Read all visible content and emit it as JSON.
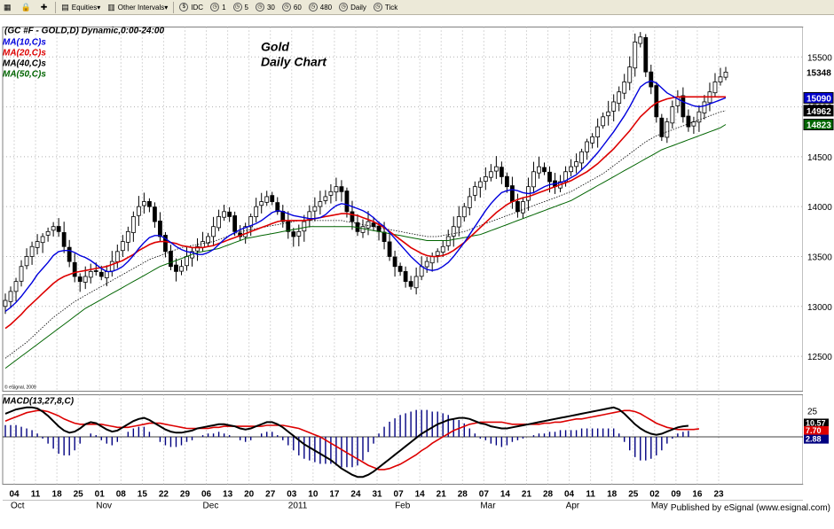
{
  "toolbar": {
    "items": [
      {
        "label": "",
        "icon": "grid-icon"
      },
      {
        "label": "",
        "icon": "lock-icon"
      },
      {
        "label": "",
        "icon": "plus-icon"
      },
      {
        "label": "Equities",
        "icon": "equities-icon",
        "dropdown": true
      },
      {
        "label": "Other Intervals",
        "icon": "intervals-icon",
        "dropdown": true
      },
      {
        "label": "IDC",
        "icon": "idc-icon"
      },
      {
        "label": "1",
        "icon": "interval-icon"
      },
      {
        "label": "5",
        "icon": "interval-icon"
      },
      {
        "label": "30",
        "icon": "interval-icon"
      },
      {
        "label": "60",
        "icon": "interval-icon"
      },
      {
        "label": "480",
        "icon": "interval-icon"
      },
      {
        "label": "Daily",
        "icon": "interval-icon"
      },
      {
        "label": "Tick",
        "icon": "interval-icon"
      }
    ]
  },
  "chart_header": {
    "symbol_line": "(GC #F - GOLD,D) Dynamic,0:00-24:00",
    "ma_labels": [
      {
        "text": "MA(10,C)s",
        "color": "#0000dd"
      },
      {
        "text": "MA(20,C)s",
        "color": "#dd0000"
      },
      {
        "text": "MA(40,C)s",
        "color": "#000000"
      },
      {
        "text": "MA(50,C)s",
        "color": "#006400"
      }
    ],
    "title_line1": "Gold",
    "title_line2": "Daily Chart",
    "copyright": "© eSignal, 2009"
  },
  "macd_label": "MACD(13,27,8,C)",
  "footer_text": "Published by eSignal (www.esignal.com)",
  "chart_data": {
    "type": "candlestick",
    "price_axis": {
      "ticks": [
        12500,
        13000,
        13500,
        14000,
        14500,
        15000,
        15500
      ],
      "range": [
        12150,
        15800
      ]
    },
    "price_badges": [
      {
        "value": "15348",
        "bg": "#ffffff",
        "fg": "#000000"
      },
      {
        "value": "15090",
        "bg": "#0000cc",
        "fg": "#ffffff"
      },
      {
        "value": "14962",
        "bg": "#000000",
        "fg": "#ffffff"
      },
      {
        "value": "14823",
        "bg": "#006400",
        "fg": "#ffffff"
      }
    ],
    "macd_axis": {
      "ticks": [
        25
      ],
      "range": [
        -45,
        40
      ]
    },
    "macd_badges": [
      {
        "value": "10.57",
        "bg": "#000000",
        "fg": "#ffffff"
      },
      {
        "value": "7.70",
        "bg": "#dd0000",
        "fg": "#ffffff"
      },
      {
        "value": "2.88",
        "bg": "#000080",
        "fg": "#ffffff"
      }
    ],
    "date_labels": [
      "04",
      "11",
      "18",
      "25",
      "01",
      "08",
      "15",
      "22",
      "29",
      "06",
      "13",
      "20",
      "27",
      "03",
      "10",
      "17",
      "24",
      "31",
      "07",
      "14",
      "21",
      "28",
      "07",
      "14",
      "21",
      "28",
      "04",
      "11",
      "18",
      "25",
      "02",
      "09",
      "16",
      "23"
    ],
    "month_labels": [
      "Oct",
      "Nov",
      "Dec",
      "2011",
      "Feb",
      "Mar",
      "Apr",
      "May"
    ],
    "closes": [
      13060,
      13150,
      13250,
      13400,
      13500,
      13600,
      13650,
      13700,
      13750,
      13800,
      13750,
      13600,
      13450,
      13300,
      13250,
      13300,
      13350,
      13350,
      13300,
      13350,
      13450,
      13550,
      13650,
      13750,
      13900,
      14000,
      14050,
      14000,
      13850,
      13700,
      13550,
      13400,
      13350,
      13400,
      13500,
      13550,
      13600,
      13650,
      13700,
      13800,
      13900,
      13950,
      13900,
      13750,
      13700,
      13800,
      13900,
      14000,
      14050,
      14100,
      14050,
      13950,
      13850,
      13750,
      13700,
      13750,
      13850,
      13950,
      14000,
      14050,
      14100,
      14150,
      14200,
      14150,
      13950,
      13850,
      13750,
      13800,
      13850,
      13800,
      13750,
      13650,
      13500,
      13400,
      13350,
      13250,
      13200,
      13300,
      13400,
      13450,
      13500,
      13550,
      13600,
      13700,
      13800,
      13900,
      14000,
      14100,
      14200,
      14250,
      14300,
      14350,
      14400,
      14300,
      14200,
      14050,
      13950,
      14050,
      14200,
      14350,
      14400,
      14350,
      14250,
      14200,
      14250,
      14350,
      14400,
      14450,
      14550,
      14650,
      14700,
      14800,
      14900,
      14950,
      15050,
      15150,
      15250,
      15400,
      15650,
      15700,
      15350,
      15200,
      14900,
      14700,
      14850,
      15000,
      15100,
      14900,
      14800,
      14850,
      14950,
      15050,
      15150,
      15250,
      15300,
      15348
    ],
    "ma10": [
      12950,
      12990,
      13040,
      13100,
      13170,
      13240,
      13320,
      13380,
      13440,
      13510,
      13550,
      13560,
      13560,
      13540,
      13510,
      13490,
      13460,
      13420,
      13380,
      13350,
      13350,
      13370,
      13400,
      13450,
      13510,
      13580,
      13640,
      13690,
      13710,
      13710,
      13680,
      13640,
      13600,
      13570,
      13550,
      13540,
      13520,
      13520,
      13540,
      13570,
      13620,
      13670,
      13710,
      13740,
      13770,
      13790,
      13810,
      13830,
      13860,
      13900,
      13940,
      13960,
      13950,
      13930,
      13910,
      13900,
      13890,
      13880,
      13880,
      13890,
      13920,
      13970,
      14010,
      14030,
      14020,
      14000,
      13980,
      13960,
      13930,
      13890,
      13840,
      13800,
      13740,
      13680,
      13620,
      13560,
      13500,
      13450,
      13400,
      13370,
      13360,
      13370,
      13400,
      13440,
      13500,
      13570,
      13640,
      13720,
      13800,
      13880,
      13960,
      14030,
      14090,
      14140,
      14160,
      14170,
      14160,
      14140,
      14130,
      14140,
      14170,
      14200,
      14220,
      14230,
      14240,
      14260,
      14290,
      14320,
      14370,
      14420,
      14480,
      14540,
      14610,
      14680,
      14750,
      14830,
      14910,
      15000,
      15100,
      15200,
      15240,
      15260,
      15240,
      15190,
      15140,
      15110,
      15080,
      15050,
      15030,
      15010,
      15000,
      15010,
      15030,
      15050,
      15070,
      15090
    ],
    "ma20": [
      12780,
      12820,
      12870,
      12920,
      12980,
      13030,
      13080,
      13130,
      13180,
      13230,
      13270,
      13300,
      13320,
      13340,
      13350,
      13360,
      13370,
      13380,
      13390,
      13400,
      13420,
      13440,
      13460,
      13490,
      13520,
      13560,
      13590,
      13620,
      13640,
      13650,
      13650,
      13640,
      13630,
      13610,
      13600,
      13590,
      13590,
      13590,
      13600,
      13610,
      13630,
      13650,
      13670,
      13690,
      13710,
      13730,
      13750,
      13770,
      13790,
      13810,
      13830,
      13850,
      13860,
      13860,
      13860,
      13860,
      13860,
      13870,
      13880,
      13890,
      13900,
      13910,
      13920,
      13930,
      13930,
      13920,
      13910,
      13890,
      13870,
      13850,
      13820,
      13790,
      13750,
      13710,
      13670,
      13630,
      13590,
      13560,
      13530,
      13510,
      13500,
      13500,
      13510,
      13530,
      13560,
      13600,
      13640,
      13690,
      13740,
      13790,
      13840,
      13890,
      13940,
      13980,
      14020,
      14050,
      14070,
      14090,
      14100,
      14120,
      14140,
      14160,
      14180,
      14200,
      14220,
      14240,
      14260,
      14290,
      14320,
      14350,
      14390,
      14430,
      14480,
      14530,
      14580,
      14640,
      14700,
      14760,
      14830,
      14900,
      14950,
      15000,
      15040,
      15060,
      15080,
      15090,
      15100,
      15100,
      15100,
      15100,
      15100,
      15100,
      15100,
      15100,
      15100,
      15100
    ],
    "ma40": [
      12480,
      12520,
      12560,
      12600,
      12640,
      12690,
      12740,
      12790,
      12840,
      12890,
      12930,
      12970,
      13010,
      13050,
      13080,
      13110,
      13140,
      13170,
      13200,
      13230,
      13260,
      13290,
      13320,
      13350,
      13380,
      13410,
      13440,
      13470,
      13490,
      13510,
      13530,
      13550,
      13570,
      13590,
      13600,
      13610,
      13620,
      13630,
      13640,
      13650,
      13670,
      13690,
      13710,
      13730,
      13750,
      13760,
      13770,
      13780,
      13790,
      13800,
      13810,
      13820,
      13830,
      13840,
      13850,
      13860,
      13860,
      13860,
      13860,
      13860,
      13860,
      13860,
      13860,
      13860,
      13850,
      13840,
      13830,
      13820,
      13810,
      13800,
      13790,
      13780,
      13770,
      13760,
      13750,
      13740,
      13730,
      13720,
      13710,
      13700,
      13700,
      13700,
      13710,
      13720,
      13730,
      13740,
      13750,
      13770,
      13790,
      13810,
      13830,
      13850,
      13870,
      13890,
      13910,
      13930,
      13950,
      13970,
      13990,
      14010,
      14030,
      14050,
      14070,
      14090,
      14110,
      14130,
      14150,
      14180,
      14210,
      14240,
      14270,
      14300,
      14330,
      14370,
      14410,
      14450,
      14490,
      14530,
      14570,
      14610,
      14650,
      14680,
      14710,
      14730,
      14750,
      14770,
      14790,
      14810,
      14830,
      14850,
      14870,
      14890,
      14910,
      14930,
      14950,
      14962
    ],
    "ma50": [
      12380,
      12420,
      12460,
      12500,
      12540,
      12580,
      12620,
      12660,
      12700,
      12740,
      12780,
      12820,
      12860,
      12900,
      12940,
      12980,
      13010,
      13040,
      13070,
      13100,
      13130,
      13160,
      13190,
      13220,
      13250,
      13280,
      13310,
      13340,
      13370,
      13400,
      13420,
      13440,
      13460,
      13480,
      13500,
      13520,
      13540,
      13550,
      13560,
      13570,
      13580,
      13600,
      13620,
      13640,
      13660,
      13680,
      13690,
      13700,
      13710,
      13720,
      13730,
      13740,
      13750,
      13760,
      13770,
      13780,
      13790,
      13800,
      13800,
      13800,
      13800,
      13800,
      13800,
      13800,
      13800,
      13800,
      13790,
      13780,
      13770,
      13760,
      13750,
      13740,
      13730,
      13720,
      13710,
      13700,
      13690,
      13680,
      13670,
      13660,
      13660,
      13660,
      13660,
      13660,
      13670,
      13680,
      13690,
      13700,
      13710,
      13720,
      13740,
      13760,
      13780,
      13800,
      13820,
      13840,
      13860,
      13880,
      13900,
      13920,
      13940,
      13960,
      13980,
      14000,
      14020,
      14040,
      14060,
      14090,
      14120,
      14150,
      14180,
      14210,
      14240,
      14270,
      14300,
      14330,
      14360,
      14390,
      14420,
      14450,
      14480,
      14510,
      14540,
      14570,
      14590,
      14610,
      14630,
      14650,
      14670,
      14690,
      14710,
      14730,
      14750,
      14770,
      14790,
      14823
    ],
    "macd": [
      22,
      24,
      26,
      27,
      28,
      28,
      27,
      24,
      20,
      15,
      10,
      6,
      4,
      5,
      8,
      12,
      14,
      13,
      10,
      7,
      5,
      6,
      9,
      12,
      15,
      17,
      18,
      16,
      13,
      10,
      7,
      5,
      4,
      4,
      5,
      6,
      8,
      9,
      10,
      11,
      12,
      12,
      11,
      10,
      8,
      7,
      8,
      10,
      12,
      14,
      14,
      12,
      9,
      5,
      1,
      -3,
      -7,
      -10,
      -13,
      -16,
      -19,
      -22,
      -26,
      -30,
      -33,
      -36,
      -38,
      -38,
      -36,
      -33,
      -29,
      -25,
      -21,
      -17,
      -13,
      -9,
      -5,
      -1,
      3,
      6,
      9,
      12,
      14,
      16,
      17,
      18,
      18,
      17,
      15,
      13,
      12,
      10,
      9,
      8,
      8,
      9,
      10,
      11,
      12,
      13,
      14,
      15,
      16,
      17,
      18,
      19,
      20,
      21,
      22,
      23,
      24,
      25,
      26,
      27,
      28,
      26,
      22,
      17,
      12,
      8,
      5,
      3,
      2,
      3,
      5,
      7,
      9,
      10,
      10.57
    ],
    "signal": [
      15,
      17,
      19,
      21,
      23,
      24,
      25,
      25,
      24,
      22,
      20,
      17,
      15,
      13,
      12,
      12,
      12,
      12,
      12,
      11,
      10,
      9,
      9,
      9,
      10,
      11,
      12,
      13,
      13,
      13,
      12,
      11,
      10,
      9,
      8,
      8,
      8,
      8,
      8,
      9,
      9,
      10,
      10,
      10,
      10,
      10,
      10,
      10,
      10,
      11,
      11,
      11,
      11,
      10,
      9,
      8,
      6,
      4,
      2,
      0,
      -3,
      -6,
      -9,
      -12,
      -15,
      -18,
      -21,
      -24,
      -27,
      -29,
      -31,
      -31,
      -30,
      -28,
      -26,
      -23,
      -20,
      -17,
      -13,
      -10,
      -6,
      -3,
      0,
      3,
      6,
      8,
      10,
      12,
      13,
      14,
      14,
      14,
      14,
      14,
      13,
      12,
      12,
      12,
      12,
      12,
      12,
      13,
      13,
      14,
      14,
      15,
      16,
      17,
      17,
      18,
      19,
      20,
      21,
      22,
      23,
      24,
      25,
      25,
      24,
      22,
      19,
      16,
      13,
      11,
      9,
      8,
      7,
      7,
      7,
      7,
      7.7
    ]
  }
}
